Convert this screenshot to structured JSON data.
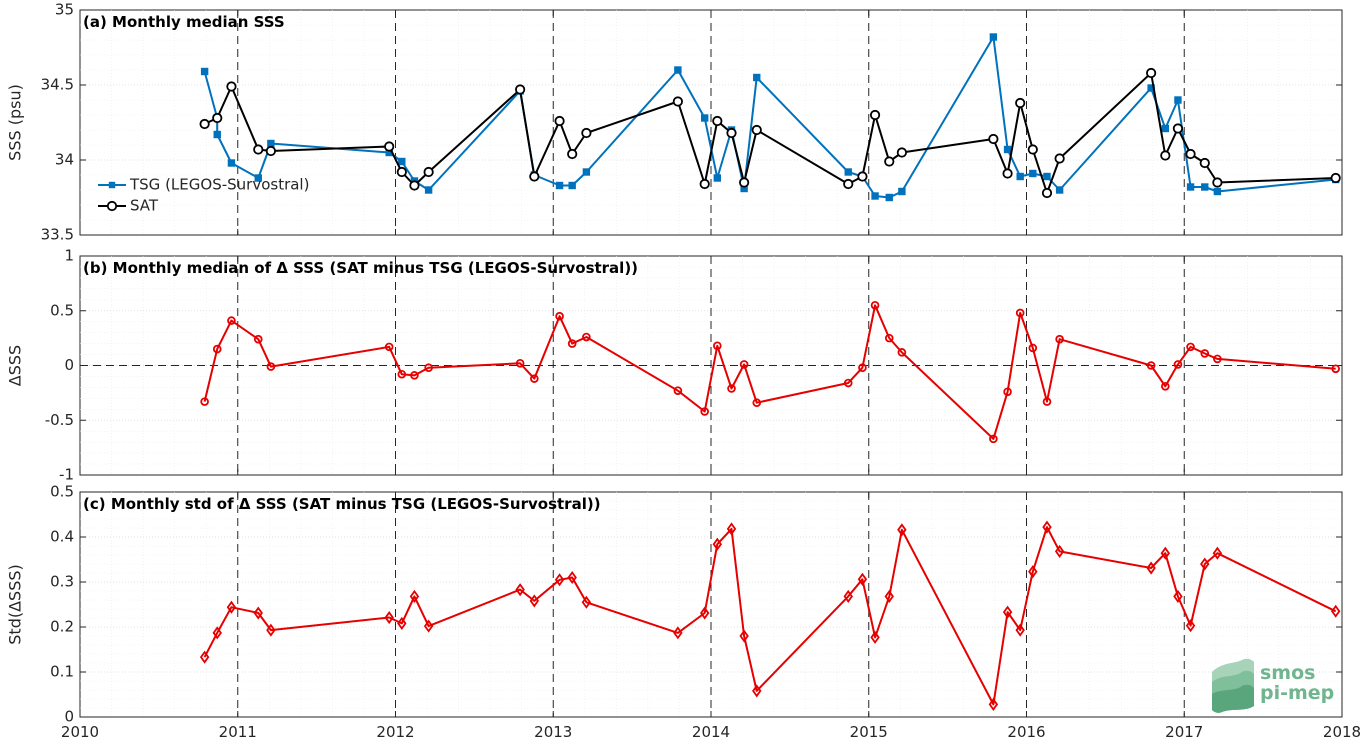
{
  "colors": {
    "tsg": "#0072BD",
    "sat": "#000000",
    "delta": "#E60000",
    "logo": "#6FB58E"
  },
  "logo": {
    "line1": "smos",
    "line2": "pi-mep"
  },
  "chart_data": [
    {
      "type": "line",
      "title": "(a) Monthly median SSS",
      "ylabel": "SSS (psu)",
      "xlim": [
        2010,
        2018
      ],
      "ylim": [
        33.5,
        35
      ],
      "yticks": [
        33.5,
        34,
        34.5,
        35
      ],
      "ytick_labels": [
        "33.5",
        "34",
        "34.5",
        "35"
      ],
      "grid": true,
      "legend": "left",
      "series": [
        {
          "name": "TSG (LEGOS-Survostral)",
          "color": "#0072BD",
          "marker": "square",
          "x": [
            2010.79,
            2010.87,
            2010.87,
            2010.96,
            2011.13,
            2011.21,
            2011.96,
            2012.04,
            2012.12,
            2012.21,
            2012.79,
            2012.88,
            2013.04,
            2013.12,
            2013.21,
            2013.79,
            2013.96,
            2014.04,
            2014.13,
            2014.21,
            2014.29,
            2014.87,
            2014.96,
            2015.04,
            2015.13,
            2015.21,
            2015.79,
            2015.88,
            2015.96,
            2016.04,
            2016.13,
            2016.21,
            2016.79,
            2016.88,
            2016.96,
            2017.04,
            2017.13,
            2017.21,
            2017.96
          ],
          "y": [
            34.59,
            34.28,
            34.17,
            33.98,
            33.88,
            34.11,
            34.05,
            33.99,
            33.86,
            33.8,
            34.46,
            33.9,
            33.83,
            33.83,
            33.92,
            34.6,
            34.28,
            33.88,
            34.2,
            33.81,
            34.55,
            33.92,
            33.89,
            33.76,
            33.75,
            33.79,
            34.82,
            34.07,
            33.89,
            33.91,
            33.89,
            33.8,
            34.48,
            34.21,
            34.4,
            33.82,
            33.82,
            33.79,
            33.87
          ]
        },
        {
          "name": "SAT",
          "color": "#000000",
          "marker": "circle",
          "x": [
            2010.79,
            2010.87,
            2010.96,
            2011.13,
            2011.21,
            2011.96,
            2012.04,
            2012.12,
            2012.21,
            2012.79,
            2012.88,
            2013.04,
            2013.12,
            2013.21,
            2013.79,
            2013.96,
            2014.04,
            2014.13,
            2014.21,
            2014.29,
            2014.87,
            2014.96,
            2015.04,
            2015.13,
            2015.21,
            2015.79,
            2015.88,
            2015.96,
            2016.04,
            2016.13,
            2016.21,
            2016.79,
            2016.88,
            2016.96,
            2017.04,
            2017.13,
            2017.21,
            2017.96
          ],
          "y": [
            34.24,
            34.28,
            34.49,
            34.07,
            34.06,
            34.09,
            33.92,
            33.83,
            33.92,
            34.47,
            33.89,
            34.26,
            34.04,
            34.18,
            34.39,
            33.84,
            34.26,
            34.18,
            33.85,
            34.2,
            33.84,
            33.89,
            34.3,
            33.99,
            34.05,
            34.14,
            33.91,
            34.38,
            34.07,
            33.78,
            34.01,
            34.58,
            34.03,
            34.21,
            34.04,
            33.98,
            33.85,
            33.88
          ]
        }
      ]
    },
    {
      "type": "line",
      "title": "(b) Monthly median of Δ SSS (SAT minus TSG (LEGOS-Survostral))",
      "ylabel": "ΔSSS",
      "xlim": [
        2010,
        2018
      ],
      "ylim": [
        -1,
        1
      ],
      "yticks": [
        -1,
        -0.5,
        0,
        0.5,
        1
      ],
      "ytick_labels": [
        "-1",
        "-0.5",
        "0",
        "0.5",
        "1"
      ],
      "grid": true,
      "series": [
        {
          "color": "#E60000",
          "marker": "circle",
          "x": [
            2010.79,
            2010.87,
            2010.96,
            2011.13,
            2011.21,
            2011.96,
            2012.04,
            2012.12,
            2012.21,
            2012.79,
            2012.88,
            2013.04,
            2013.12,
            2013.21,
            2013.79,
            2013.96,
            2014.04,
            2014.13,
            2014.21,
            2014.29,
            2014.87,
            2014.96,
            2015.04,
            2015.13,
            2015.21,
            2015.79,
            2015.88,
            2015.96,
            2016.04,
            2016.13,
            2016.21,
            2016.79,
            2016.88,
            2016.96,
            2017.04,
            2017.13,
            2017.21,
            2017.96
          ],
          "y": [
            -0.33,
            0.15,
            0.41,
            0.24,
            -0.01,
            0.17,
            -0.08,
            -0.09,
            -0.02,
            0.02,
            -0.12,
            0.45,
            0.2,
            0.26,
            -0.23,
            -0.42,
            0.18,
            -0.21,
            0.01,
            -0.34,
            -0.16,
            -0.02,
            0.55,
            0.25,
            0.12,
            -0.67,
            -0.24,
            0.48,
            0.16,
            -0.33,
            0.24,
            0.0,
            -0.19,
            0.01,
            0.17,
            0.11,
            0.06,
            -0.03
          ]
        }
      ]
    },
    {
      "type": "line",
      "title": "(c) Monthly std of Δ SSS (SAT minus TSG (LEGOS-Survostral))",
      "ylabel": "Std(ΔSSS)",
      "xlim": [
        2010,
        2018
      ],
      "ylim": [
        0,
        0.5
      ],
      "xticks": [
        2010,
        2011,
        2012,
        2013,
        2014,
        2015,
        2016,
        2017,
        2018
      ],
      "xtick_labels": [
        "2010",
        "2011",
        "2012",
        "2013",
        "2014",
        "2015",
        "2016",
        "2017",
        "2018"
      ],
      "yticks": [
        0,
        0.1,
        0.2,
        0.3,
        0.4,
        0.5
      ],
      "ytick_labels": [
        "0",
        "0.1",
        "0.2",
        "0.3",
        "0.4",
        "0.5"
      ],
      "grid": true,
      "series": [
        {
          "color": "#E60000",
          "marker": "diamond",
          "x": [
            2010.79,
            2010.87,
            2010.96,
            2011.13,
            2011.21,
            2011.96,
            2012.04,
            2012.12,
            2012.21,
            2012.79,
            2012.88,
            2013.04,
            2013.12,
            2013.21,
            2013.79,
            2013.96,
            2014.04,
            2014.13,
            2014.21,
            2014.29,
            2014.87,
            2014.96,
            2015.04,
            2015.13,
            2015.21,
            2015.79,
            2015.88,
            2015.96,
            2016.04,
            2016.13,
            2016.21,
            2016.79,
            2016.88,
            2016.96,
            2017.04,
            2017.13,
            2017.21,
            2017.96
          ],
          "y": [
            0.133,
            0.187,
            0.244,
            0.231,
            0.193,
            0.221,
            0.208,
            0.268,
            0.202,
            0.283,
            0.258,
            0.305,
            0.31,
            0.255,
            0.187,
            0.231,
            0.384,
            0.418,
            0.18,
            0.058,
            0.268,
            0.306,
            0.177,
            0.268,
            0.416,
            0.028,
            0.233,
            0.193,
            0.323,
            0.422,
            0.368,
            0.331,
            0.364,
            0.268,
            0.203,
            0.34,
            0.364,
            0.235
          ]
        }
      ]
    }
  ]
}
